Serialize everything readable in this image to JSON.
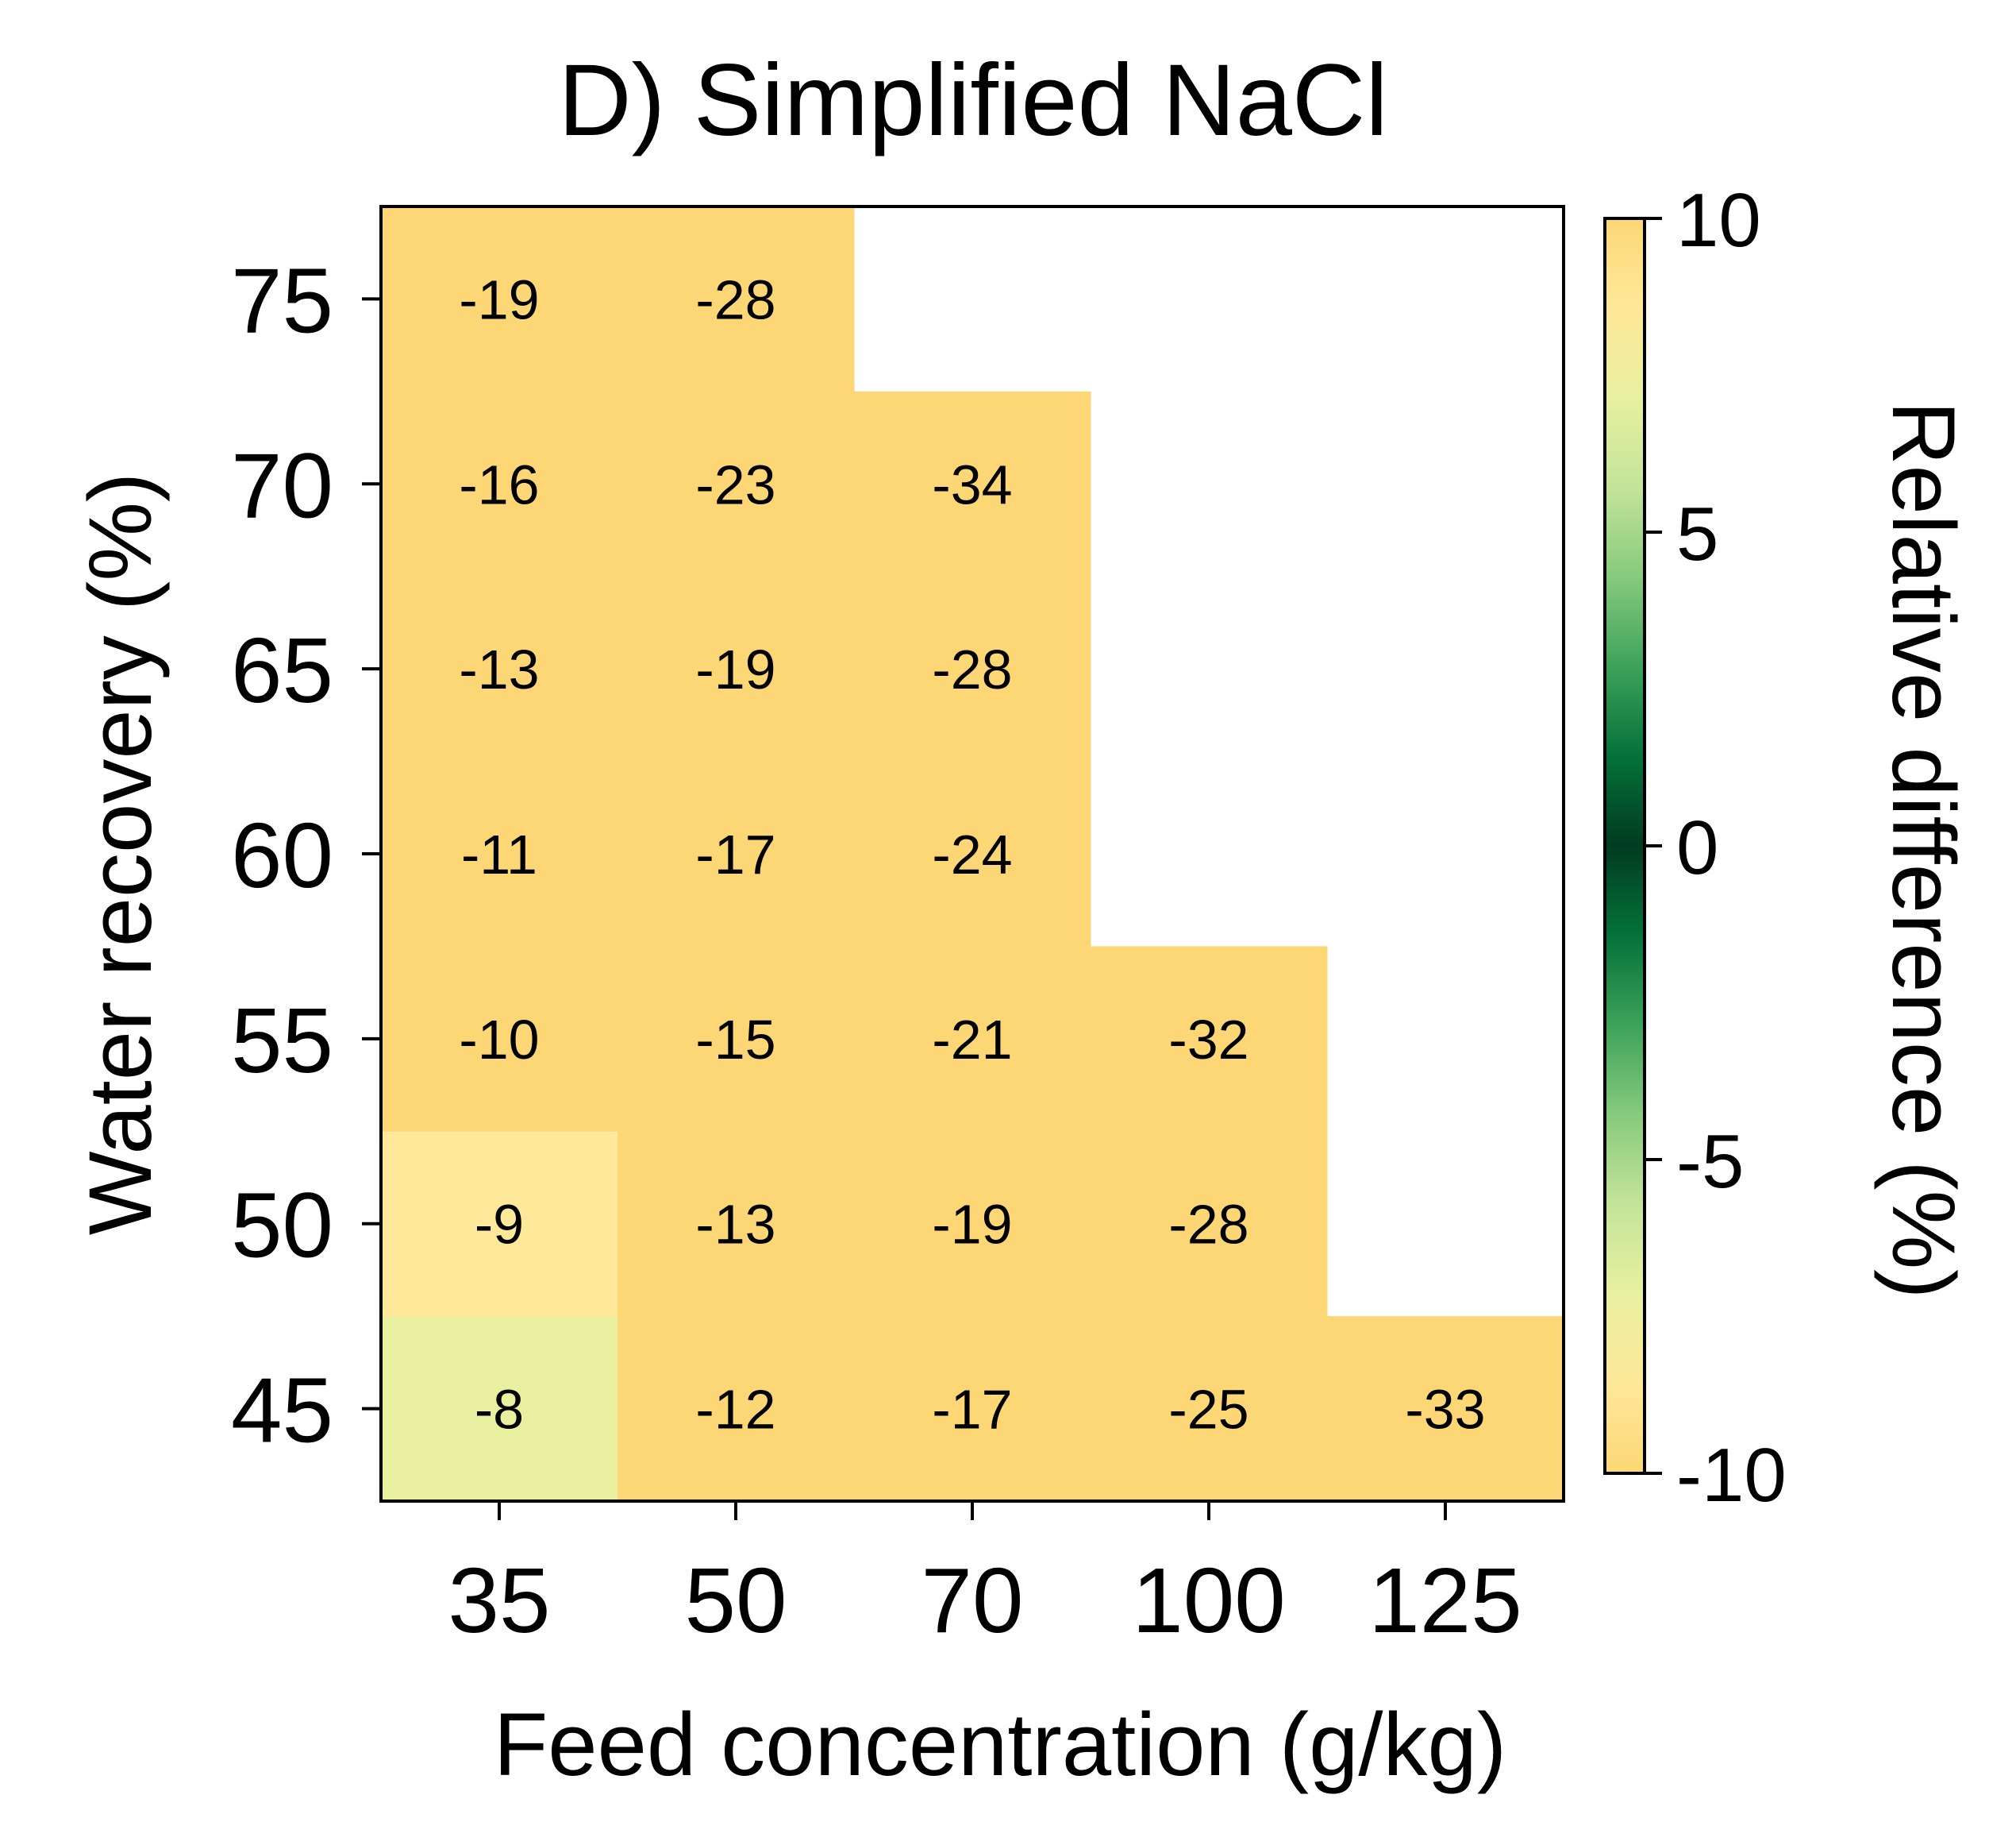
{
  "chart_data": {
    "type": "heatmap",
    "title": "D) Simplified NaCl",
    "xlabel": "Feed concentration (g/kg)",
    "ylabel": "Water recovery (%)",
    "x": [
      "35",
      "50",
      "70",
      "100",
      "125"
    ],
    "y": [
      "45",
      "50",
      "55",
      "60",
      "65",
      "70",
      "75"
    ],
    "values": [
      [
        -8,
        -12,
        -17,
        -25,
        -33
      ],
      [
        -9,
        -13,
        -19,
        -28,
        null
      ],
      [
        -10,
        -15,
        -21,
        -32,
        null
      ],
      [
        -11,
        -17,
        -24,
        null,
        null
      ],
      [
        -13,
        -19,
        -28,
        null,
        null
      ],
      [
        -16,
        -23,
        -34,
        null,
        null
      ],
      [
        -19,
        -28,
        null,
        null,
        null
      ]
    ],
    "colorbar": {
      "label": "Relative difference (%)",
      "range": [
        -10,
        10
      ],
      "ticks": [
        "10",
        "5",
        "0",
        "-5",
        "-10"
      ],
      "tick_values": [
        10,
        5,
        0,
        -5,
        -10
      ],
      "colormap": "YlGn-Greens diverging",
      "colors": [
        "#FDD775",
        "#FEE899",
        "#E8F0A0",
        "#C4E49A",
        "#86CA7D",
        "#3DA25A",
        "#05723A",
        "#003B20"
      ]
    },
    "grid": false
  }
}
